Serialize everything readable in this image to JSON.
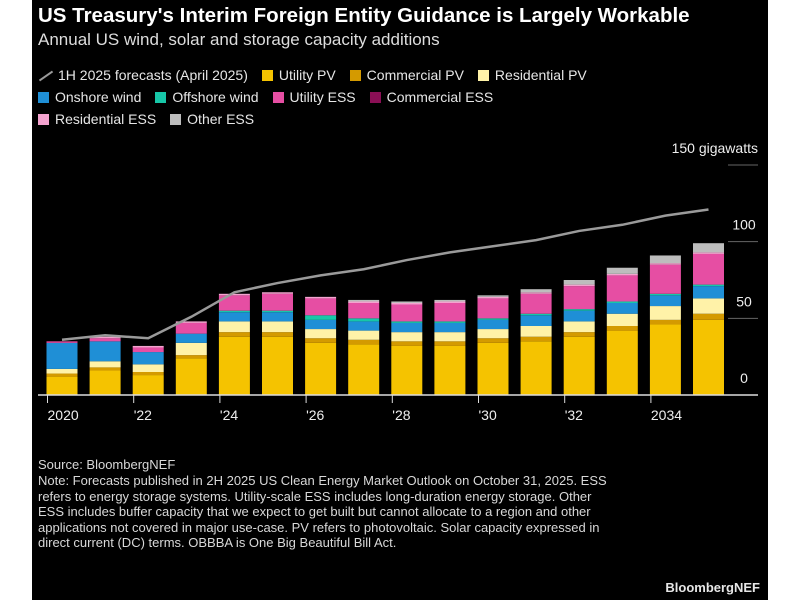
{
  "chart_data": {
    "type": "bar",
    "title": "US Treasury's Interim Foreign Entity Guidance is Largely Workable",
    "subtitle": "Annual US wind, solar and storage capacity additions",
    "unit_label": "150 gigawatts",
    "ylim": [
      0,
      150
    ],
    "y_ticks": [
      0,
      50,
      100
    ],
    "categories": [
      "2020",
      "2021",
      "2022",
      "2023",
      "2024",
      "2025",
      "2026",
      "2027",
      "2028",
      "2029",
      "2030",
      "2031",
      "2032",
      "2033",
      "2034",
      "2035"
    ],
    "x_tick_labels": [
      {
        "index": 0,
        "label": "2020"
      },
      {
        "index": 2,
        "label": "'22"
      },
      {
        "index": 4,
        "label": "'24"
      },
      {
        "index": 6,
        "label": "'26"
      },
      {
        "index": 8,
        "label": "'28"
      },
      {
        "index": 10,
        "label": "'30"
      },
      {
        "index": 12,
        "label": "'32"
      },
      {
        "index": 14,
        "label": "2034"
      }
    ],
    "series": [
      {
        "name": "Utility PV",
        "color": "#f5c300",
        "values": [
          12,
          16,
          13,
          24,
          38,
          38,
          34,
          33,
          32,
          32,
          34,
          35,
          38,
          42,
          46,
          49
        ]
      },
      {
        "name": "Commercial PV",
        "color": "#d49a00",
        "values": [
          2,
          2,
          2,
          2,
          3,
          3,
          3,
          3,
          3,
          3,
          3,
          3,
          3,
          3,
          3,
          4
        ]
      },
      {
        "name": "Residential PV",
        "color": "#fff2a8",
        "values": [
          3,
          4,
          5,
          8,
          7,
          7,
          6,
          6,
          6,
          6,
          6,
          7,
          7,
          8,
          9,
          10
        ]
      },
      {
        "name": "Onshore wind",
        "color": "#1f8fd6",
        "values": [
          17,
          13,
          8,
          6,
          6,
          6,
          6,
          6,
          6,
          6,
          6,
          7,
          7,
          7,
          7,
          8
        ]
      },
      {
        "name": "Offshore wind",
        "color": "#17c7a8",
        "values": [
          0,
          0,
          0,
          0,
          1,
          1,
          3,
          2,
          1,
          1,
          1,
          1,
          1,
          1,
          1,
          1
        ]
      },
      {
        "name": "Utility ESS",
        "color": "#e64ea3",
        "values": [
          1,
          2,
          3,
          7,
          10,
          11,
          11,
          10,
          11,
          12,
          13,
          13,
          15,
          17,
          19,
          20
        ]
      },
      {
        "name": "Commercial ESS",
        "color": "#8a0f55",
        "values": [
          0,
          0,
          0,
          0,
          0,
          0,
          0,
          0,
          0,
          0,
          0,
          0,
          0,
          0,
          0,
          0
        ]
      },
      {
        "name": "Residential ESS",
        "color": "#f4a3cf",
        "values": [
          0,
          1,
          1,
          1,
          1,
          1,
          1,
          1,
          1,
          1,
          1,
          1,
          1,
          1,
          1,
          1
        ]
      },
      {
        "name": "Other ESS",
        "color": "#bdbdbd",
        "values": [
          0,
          0,
          0,
          0,
          0,
          0,
          0,
          1,
          1,
          1,
          1,
          2,
          3,
          4,
          5,
          6
        ]
      }
    ],
    "forecast_line": {
      "name": "1H 2025 forecasts (April 2025)",
      "color": "#9a9a9a",
      "values": [
        36,
        39,
        37,
        51,
        67,
        73,
        78,
        82,
        88,
        93,
        97,
        101,
        107,
        111,
        117,
        121
      ]
    }
  },
  "legend": {
    "row1": [
      {
        "kind": "line",
        "label": "1H 2025 forecasts (April 2025)",
        "color": "#9a9a9a"
      },
      {
        "kind": "box",
        "label": "Utility PV",
        "color": "#f5c300"
      },
      {
        "kind": "box",
        "label": "Commercial PV",
        "color": "#d49a00"
      },
      {
        "kind": "box",
        "label": "Residential PV",
        "color": "#fff2a8"
      }
    ],
    "row2": [
      {
        "kind": "box",
        "label": "Onshore wind",
        "color": "#1f8fd6"
      },
      {
        "kind": "box",
        "label": "Offshore wind",
        "color": "#17c7a8"
      },
      {
        "kind": "box",
        "label": "Utility ESS",
        "color": "#e64ea3"
      },
      {
        "kind": "box",
        "label": "Commercial ESS",
        "color": "#8a0f55"
      }
    ],
    "row3": [
      {
        "kind": "box",
        "label": "Residential ESS",
        "color": "#f4a3cf"
      },
      {
        "kind": "box",
        "label": "Other ESS",
        "color": "#bdbdbd"
      }
    ]
  },
  "footer": {
    "source": "Source: BloombergNEF",
    "note": "Note: Forecasts published in 2H 2025 US Clean Energy Market Outlook on October 31, 2025. ESS refers to energy storage systems. Utility-scale ESS includes long-duration energy storage. Other ESS includes buffer capacity that we expect to get built but cannot allocate to a region and other applications not covered in major use-case. PV refers to photovoltaic. Solar capacity expressed in direct current (DC) terms. OBBBA is One Big Beautiful Bill Act.",
    "brand": "BloombergNEF"
  }
}
